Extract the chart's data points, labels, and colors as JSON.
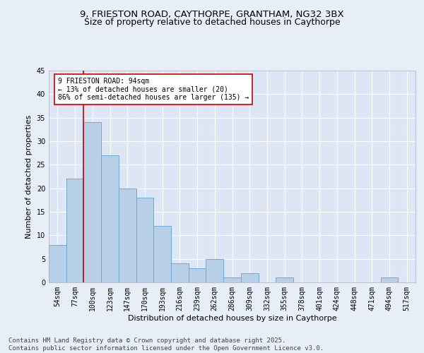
{
  "title1": "9, FRIESTON ROAD, CAYTHORPE, GRANTHAM, NG32 3BX",
  "title2": "Size of property relative to detached houses in Caythorpe",
  "xlabel": "Distribution of detached houses by size in Caythorpe",
  "ylabel": "Number of detached properties",
  "categories": [
    "54sqm",
    "77sqm",
    "100sqm",
    "123sqm",
    "147sqm",
    "170sqm",
    "193sqm",
    "216sqm",
    "239sqm",
    "262sqm",
    "286sqm",
    "309sqm",
    "332sqm",
    "355sqm",
    "378sqm",
    "401sqm",
    "424sqm",
    "448sqm",
    "471sqm",
    "494sqm",
    "517sqm"
  ],
  "values": [
    8,
    22,
    34,
    27,
    20,
    18,
    12,
    4,
    3,
    5,
    1,
    2,
    0,
    1,
    0,
    0,
    0,
    0,
    0,
    1,
    0
  ],
  "bar_color": "#b8cfe8",
  "bar_edge_color": "#6fa8d4",
  "background_color": "#e8eef7",
  "plot_bg_color": "#dce6f5",
  "grid_color": "#ffffff",
  "vline_x": 1.5,
  "vline_color": "#cc0000",
  "annotation_text": "9 FRIESTON ROAD: 94sqm\n← 13% of detached houses are smaller (20)\n86% of semi-detached houses are larger (135) →",
  "annotation_box_color": "#cc0000",
  "ylim": [
    0,
    45
  ],
  "yticks": [
    0,
    5,
    10,
    15,
    20,
    25,
    30,
    35,
    40,
    45
  ],
  "footer": "Contains HM Land Registry data © Crown copyright and database right 2025.\nContains public sector information licensed under the Open Government Licence v3.0.",
  "title_fontsize": 9.5,
  "subtitle_fontsize": 9,
  "axis_label_fontsize": 8,
  "tick_fontsize": 7,
  "annotation_fontsize": 7,
  "footer_fontsize": 6.5
}
